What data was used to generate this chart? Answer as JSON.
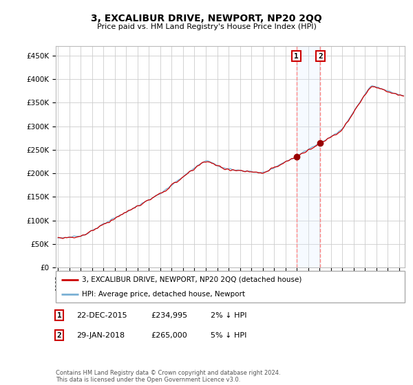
{
  "title": "3, EXCALIBUR DRIVE, NEWPORT, NP20 2QQ",
  "subtitle": "Price paid vs. HM Land Registry's House Price Index (HPI)",
  "ylabel_ticks": [
    "£0",
    "£50K",
    "£100K",
    "£150K",
    "£200K",
    "£250K",
    "£300K",
    "£350K",
    "£400K",
    "£450K"
  ],
  "ytick_values": [
    0,
    50000,
    100000,
    150000,
    200000,
    250000,
    300000,
    350000,
    400000,
    450000
  ],
  "ylim": [
    0,
    470000
  ],
  "xlim_start": 1994.8,
  "xlim_end": 2025.5,
  "sale1_date": 2015.97,
  "sale1_price": 234995,
  "sale2_date": 2018.08,
  "sale2_price": 265000,
  "hpi_color": "#7ab0d4",
  "price_color": "#cc0000",
  "vline_color": "#ff8888",
  "shade_color": "#ddeeff",
  "dot_color": "#990000",
  "legend_house_label": "3, EXCALIBUR DRIVE, NEWPORT, NP20 2QQ (detached house)",
  "legend_hpi_label": "HPI: Average price, detached house, Newport",
  "annotation1_date": "22-DEC-2015",
  "annotation1_price": "£234,995",
  "annotation1_hpi": "2% ↓ HPI",
  "annotation2_date": "29-JAN-2018",
  "annotation2_price": "£265,000",
  "annotation2_hpi": "5% ↓ HPI",
  "footer": "Contains HM Land Registry data © Crown copyright and database right 2024.\nThis data is licensed under the Open Government Licence v3.0.",
  "background_color": "#ffffff",
  "grid_color": "#cccccc"
}
